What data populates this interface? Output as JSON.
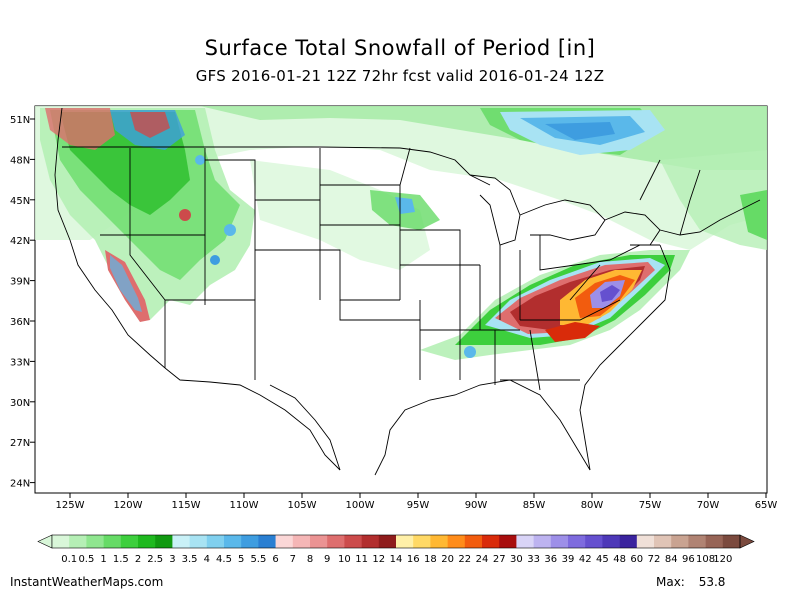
{
  "title": "Surface Total Snowfall of Period [in]",
  "subtitle": "GFS 2016-01-21 12Z 72hr fcst valid 2016-01-24 12Z",
  "latitude_labels": [
    "51N",
    "48N",
    "45N",
    "42N",
    "39N",
    "36N",
    "33N",
    "30N",
    "27N",
    "24N"
  ],
  "longitude_labels": [
    "125W",
    "120W",
    "115W",
    "110W",
    "105W",
    "100W",
    "95W",
    "90W",
    "85W",
    "80W",
    "75W",
    "70W",
    "65W"
  ],
  "legend": {
    "labels": [
      "0.1",
      "0.5",
      "1",
      "1.5",
      "2",
      "2.5",
      "3",
      "3.5",
      "4",
      "4.5",
      "5",
      "5.5",
      "6",
      "7",
      "8",
      "9",
      "10",
      "11",
      "12",
      "14",
      "16",
      "18",
      "20",
      "22",
      "24",
      "27",
      "30",
      "33",
      "36",
      "39",
      "42",
      "45",
      "48",
      "60",
      "72",
      "84",
      "96",
      "108",
      "120"
    ],
    "colors": [
      "#d9f7d9",
      "#b5efb5",
      "#8fe68f",
      "#66db66",
      "#3dcf3d",
      "#1fb91f",
      "#119a11",
      "#c9f1f7",
      "#a8e3f3",
      "#80d0ef",
      "#5ab8ea",
      "#3e9de0",
      "#2a7fd2",
      "#fbd7d7",
      "#f5b6b6",
      "#eb9393",
      "#de6e6e",
      "#cc4b4b",
      "#b22e2e",
      "#8f1c1c",
      "#fff0a8",
      "#ffd966",
      "#ffb833",
      "#ff8c1a",
      "#f25c0e",
      "#d92b0a",
      "#a80d0d",
      "#d9d4f7",
      "#bdb3f0",
      "#9d8fe8",
      "#7e6bde",
      "#6550cf",
      "#4d38b8",
      "#3a239e",
      "#f0e0d8",
      "#e0c4b6",
      "#c9a391",
      "#b08373",
      "#976456",
      "#7b4a3e"
    ]
  },
  "footer": {
    "site": "InstantWeatherMaps.com",
    "max_label": "Max:",
    "max_value": "53.8"
  }
}
